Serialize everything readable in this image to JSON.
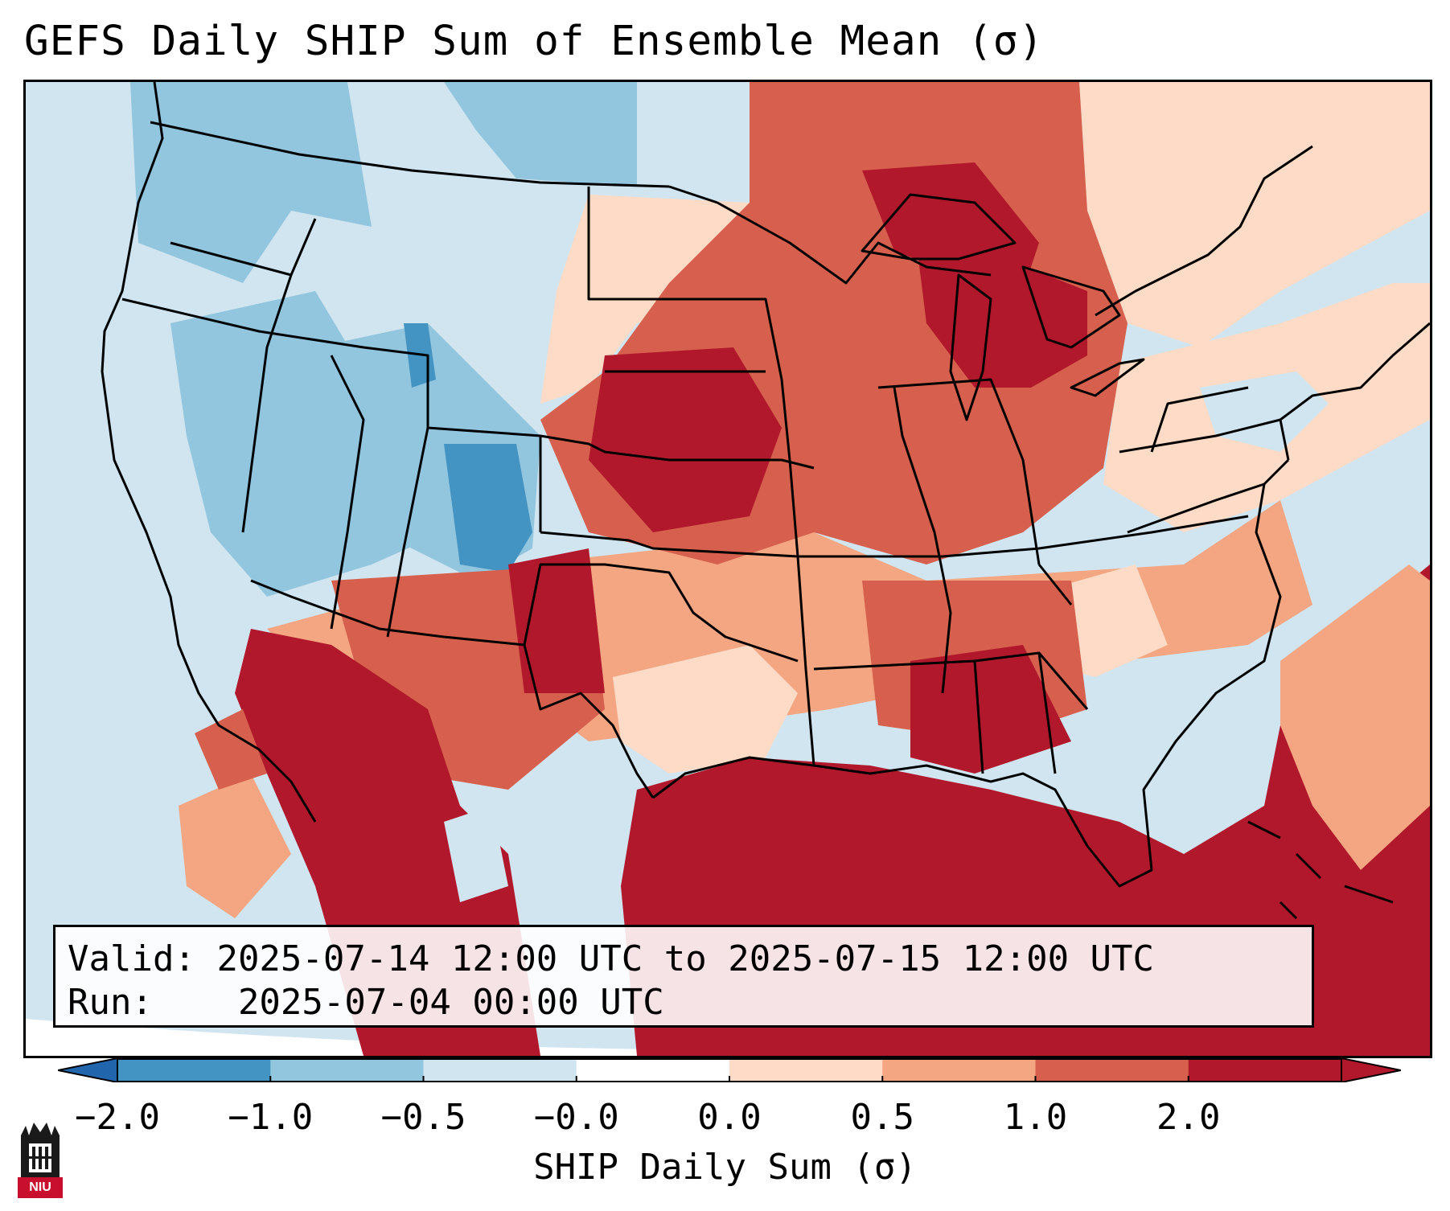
{
  "title": "GEFS Daily SHIP Sum of Ensemble Mean (σ)",
  "info": {
    "valid_label": "Valid:",
    "valid_text": "2025-07-14 12:00 UTC to 2025-07-15 12:00 UTC",
    "run_label": "Run:",
    "run_text": "2025-07-04 00:00 UTC"
  },
  "colorbar": {
    "label": "SHIP Daily Sum (σ)",
    "ticks": [
      "−2.0",
      "−1.0",
      "−0.5",
      "−0.0",
      "0.0",
      "0.5",
      "1.0",
      "2.0"
    ],
    "colors": [
      "#4393c3",
      "#92c5de",
      "#d1e5f0",
      "#ffffff",
      "#fddbc7",
      "#f4a582",
      "#d6604d",
      "#b2182b"
    ],
    "under_color": "#2166ac",
    "over_color": "#b2182b"
  },
  "map": {
    "domain": "Contiguous United States, southern Canada, northern Mexico, Gulf of Mexico",
    "pattern": "Negative (blue) anomalies over the western US; positive (red) anomalies over the central and eastern US, Gulf of Mexico and western Atlantic"
  },
  "logo": {
    "text": "NIU"
  }
}
